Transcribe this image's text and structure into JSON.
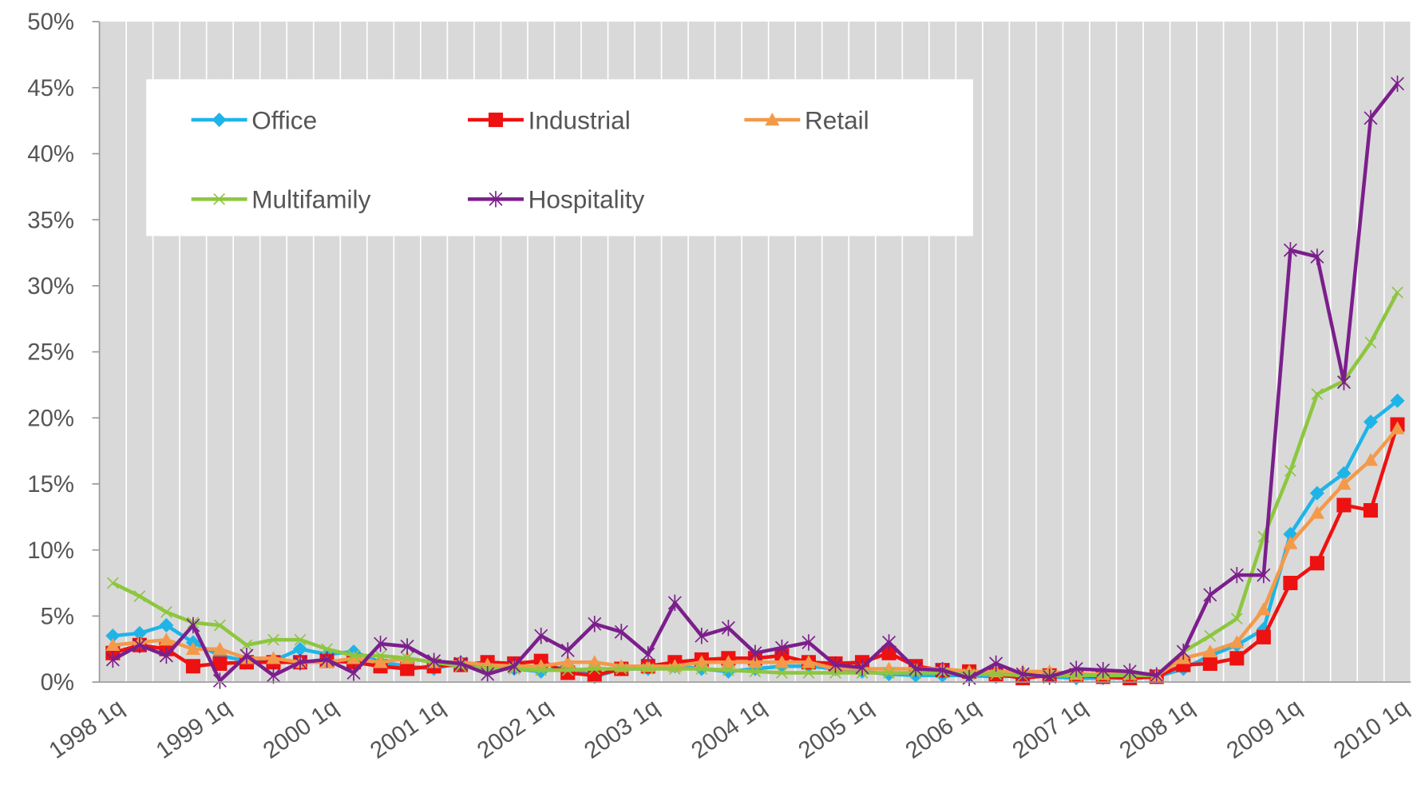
{
  "chart_data": {
    "type": "line",
    "categories": [
      "1998 1q",
      null,
      null,
      null,
      "1999 1q",
      null,
      null,
      null,
      "2000 1q",
      null,
      null,
      null,
      "2001 1q",
      null,
      null,
      null,
      "2002 1q",
      null,
      null,
      null,
      "2003 1q",
      null,
      null,
      null,
      "2004 1q",
      null,
      null,
      null,
      "2005 1q",
      null,
      null,
      null,
      "2006 1q",
      null,
      null,
      null,
      "2007 1q",
      null,
      null,
      null,
      "2008 1q",
      null,
      null,
      null,
      "2009 1q",
      null,
      null,
      null,
      "2010 1q"
    ],
    "series": [
      {
        "name": "Office",
        "color": "#1fb4e8",
        "values": [
          3.5,
          3.7,
          4.3,
          3.0,
          2.0,
          1.6,
          1.6,
          2.5,
          2.1,
          2.3,
          1.5,
          1.2,
          1.0,
          1.5,
          1.0,
          1.0,
          0.8,
          1.2,
          0.4,
          1.0,
          1.0,
          1.2,
          1.0,
          0.8,
          1.0,
          1.2,
          1.2,
          1.0,
          0.8,
          0.6,
          0.5,
          0.5,
          0.5,
          0.4,
          0.5,
          0.4,
          0.3,
          0.3,
          0.3,
          0.4,
          1.0,
          2.0,
          2.8,
          4.0,
          11.2,
          14.3,
          15.8,
          19.7,
          21.3
        ]
      },
      {
        "name": "Industrial",
        "color": "#ee1111",
        "values": [
          2.2,
          2.8,
          2.5,
          1.2,
          1.4,
          1.5,
          1.5,
          1.5,
          1.6,
          1.5,
          1.2,
          1.0,
          1.2,
          1.3,
          1.5,
          1.4,
          1.6,
          0.7,
          0.5,
          1.0,
          1.2,
          1.5,
          1.7,
          1.8,
          1.8,
          2.0,
          1.5,
          1.4,
          1.5,
          2.2,
          1.2,
          0.9,
          0.8,
          0.6,
          0.3,
          0.5,
          0.5,
          0.4,
          0.3,
          0.4,
          1.3,
          1.4,
          1.8,
          3.4,
          7.5,
          9.0,
          13.4,
          13.0,
          19.5
        ]
      },
      {
        "name": "Retail",
        "color": "#f39a4a",
        "values": [
          2.8,
          3.0,
          3.2,
          2.5,
          2.5,
          1.8,
          1.8,
          1.5,
          1.5,
          1.8,
          1.5,
          1.8,
          1.5,
          1.5,
          1.3,
          1.2,
          1.2,
          1.5,
          1.5,
          1.2,
          1.2,
          1.2,
          1.5,
          1.5,
          1.5,
          1.5,
          1.5,
          1.0,
          1.0,
          1.0,
          1.0,
          1.0,
          0.8,
          0.8,
          0.8,
          0.8,
          0.6,
          0.6,
          0.6,
          0.5,
          1.8,
          2.3,
          3.0,
          5.5,
          10.5,
          12.8,
          15.0,
          16.8,
          19.2
        ]
      },
      {
        "name": "Multifamily",
        "color": "#8dc63f",
        "values": [
          7.5,
          6.5,
          5.3,
          4.5,
          4.3,
          2.8,
          3.2,
          3.2,
          2.5,
          2.0,
          2.0,
          1.8,
          1.5,
          1.2,
          1.0,
          1.0,
          0.9,
          0.9,
          1.0,
          1.0,
          1.0,
          1.0,
          1.0,
          0.9,
          0.8,
          0.7,
          0.7,
          0.7,
          0.7,
          0.7,
          0.7,
          0.7,
          0.6,
          0.6,
          0.5,
          0.5,
          0.5,
          0.5,
          0.5,
          0.5,
          2.3,
          3.5,
          4.8,
          11.0,
          16.0,
          21.8,
          22.8,
          25.7,
          29.5
        ]
      },
      {
        "name": "Hospitality",
        "color": "#7b1f8c",
        "values": [
          1.7,
          2.8,
          2.0,
          4.3,
          0.1,
          2.0,
          0.5,
          1.5,
          1.7,
          0.7,
          2.9,
          2.7,
          1.6,
          1.4,
          0.6,
          1.2,
          3.5,
          2.4,
          4.4,
          3.8,
          2.1,
          6.0,
          3.5,
          4.1,
          2.2,
          2.6,
          3.0,
          1.3,
          1.1,
          3.0,
          1.0,
          0.9,
          0.3,
          1.4,
          0.6,
          0.4,
          1.0,
          0.9,
          0.8,
          0.5,
          2.3,
          6.6,
          8.1,
          8.1,
          32.7,
          32.2,
          22.7,
          42.7,
          45.3
        ]
      }
    ],
    "ylim": [
      0,
      50
    ],
    "yticks": [
      {
        "value": 0,
        "label": "0%"
      },
      {
        "value": 5,
        "label": "5%"
      },
      {
        "value": 10,
        "label": "10%"
      },
      {
        "value": 15,
        "label": "15%"
      },
      {
        "value": 20,
        "label": "20%"
      },
      {
        "value": 25,
        "label": "25%"
      },
      {
        "value": 30,
        "label": "30%"
      },
      {
        "value": 35,
        "label": "35%"
      },
      {
        "value": 40,
        "label": "40%"
      },
      {
        "value": 45,
        "label": "45%"
      },
      {
        "value": 50,
        "label": "50%"
      }
    ],
    "legend": "upper left"
  }
}
